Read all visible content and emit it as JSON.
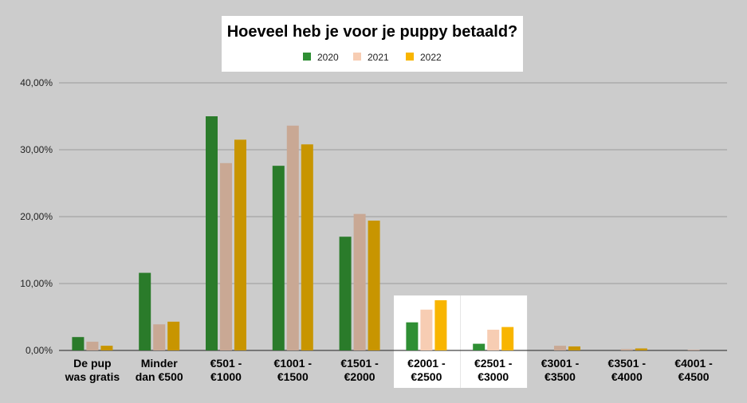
{
  "chart_data": {
    "type": "bar",
    "title": "Hoeveel heb je voor je puppy betaald?",
    "categories": [
      [
        "De pup",
        "was gratis"
      ],
      [
        "Minder",
        "dan €500"
      ],
      [
        "€501 -",
        "€1000"
      ],
      [
        "€1001 -",
        "€1500"
      ],
      [
        "€1501 -",
        "€2000"
      ],
      [
        "€2001 -",
        "€2500"
      ],
      [
        "€2501 -",
        "€3000"
      ],
      [
        "€3001 -",
        "€3500"
      ],
      [
        "€3501 -",
        "€4000"
      ],
      [
        "€4001 -",
        "€4500"
      ]
    ],
    "y_tick_labels": [
      "0,00%",
      "10,00%",
      "20,00%",
      "30,00%",
      "40,00%"
    ],
    "y_ticks": [
      0,
      10,
      20,
      30,
      40
    ],
    "ylim": [
      0,
      40
    ],
    "grid": true,
    "legend_position": "top-center",
    "highlighted_categories": [
      5,
      6
    ],
    "series": [
      {
        "name": "2020",
        "color": "#2a7b2a",
        "highlight_color": "#2f8f34",
        "values": [
          2.0,
          11.6,
          35.0,
          27.6,
          17.0,
          4.2,
          1.0,
          0.0,
          0.0,
          0.0
        ]
      },
      {
        "name": "2021",
        "color": "#c9a894",
        "highlight_color": "#f7cdb3",
        "values": [
          1.3,
          3.9,
          28.0,
          33.6,
          20.4,
          6.1,
          3.1,
          0.7,
          0.2,
          0.1
        ]
      },
      {
        "name": "2022",
        "color": "#c89500",
        "highlight_color": "#f8b500",
        "values": [
          0.7,
          4.3,
          31.5,
          30.8,
          19.4,
          7.5,
          3.5,
          0.6,
          0.3,
          0.0
        ]
      }
    ]
  }
}
